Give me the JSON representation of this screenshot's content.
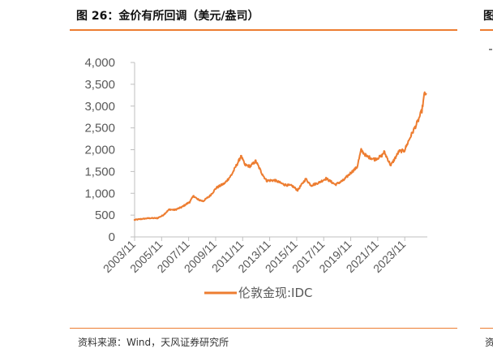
{
  "header": {
    "title": "图 26：金价有所回调（美元/盎司）",
    "clipped_next_title": "图"
  },
  "footer": {
    "source": "资料来源：Wind，天风证券研究所",
    "clipped_next_source": "资"
  },
  "colors": {
    "accent": "#ED7D31",
    "axis": "#BFBFBF",
    "text": "#595959"
  },
  "chart_data": {
    "type": "line",
    "title": "金价有所回调（美元/盎司）",
    "xlabel": "",
    "ylabel": "",
    "ylim": [
      0,
      4000
    ],
    "yticks": [
      0,
      500,
      1000,
      1500,
      2000,
      2500,
      3000,
      3500,
      4000
    ],
    "ytick_labels": [
      "0",
      "500",
      "1,000",
      "1,500",
      "2,000",
      "2,500",
      "3,000",
      "3,500",
      "4,000"
    ],
    "xlim": [
      2003.83,
      2025.5
    ],
    "xticks": [
      2003.83,
      2005.83,
      2007.83,
      2009.83,
      2011.83,
      2013.83,
      2015.83,
      2017.83,
      2019.83,
      2021.83,
      2023.83
    ],
    "xtick_labels": [
      "2003/11",
      "2005/11",
      "2007/11",
      "2009/11",
      "2011/11",
      "2013/11",
      "2015/11",
      "2017/11",
      "2019/11",
      "2021/11",
      "2023/11"
    ],
    "legend": {
      "position": "bottom",
      "entries": [
        "伦敦金现:IDC"
      ]
    },
    "grid": false,
    "series": [
      {
        "name": "伦敦金现:IDC",
        "x": [
          2003.83,
          2004.3,
          2004.9,
          2005.5,
          2005.9,
          2006.4,
          2006.8,
          2007.3,
          2007.9,
          2008.2,
          2008.5,
          2008.9,
          2009.4,
          2009.9,
          2010.5,
          2011.0,
          2011.6,
          2011.7,
          2012.0,
          2012.4,
          2012.8,
          2013.3,
          2013.6,
          2014.2,
          2014.9,
          2015.5,
          2015.9,
          2016.5,
          2016.9,
          2017.5,
          2018.0,
          2018.7,
          2019.3,
          2019.8,
          2020.3,
          2020.6,
          2021.0,
          2021.6,
          2022.1,
          2022.3,
          2022.8,
          2023.4,
          2023.8,
          2024.3,
          2024.8,
          2025.1,
          2025.3,
          2025.4
        ],
        "y": [
          390,
          410,
          430,
          430,
          490,
          630,
          620,
          680,
          800,
          940,
          860,
          820,
          940,
          1130,
          1230,
          1420,
          1780,
          1860,
          1650,
          1620,
          1740,
          1430,
          1290,
          1300,
          1200,
          1170,
          1070,
          1330,
          1180,
          1250,
          1340,
          1200,
          1300,
          1460,
          1600,
          1990,
          1850,
          1780,
          1850,
          1950,
          1640,
          1960,
          1980,
          2330,
          2650,
          2900,
          3300,
          3280
        ]
      }
    ]
  }
}
